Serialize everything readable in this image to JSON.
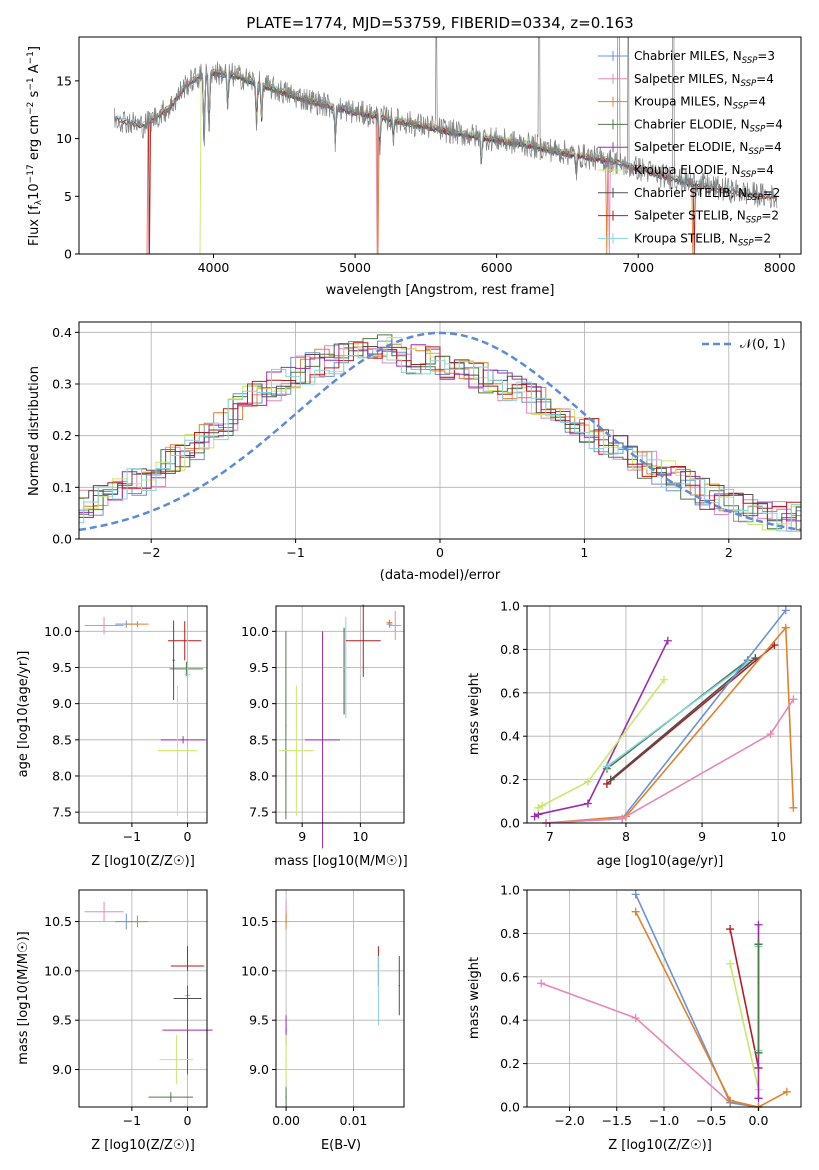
{
  "colors": {
    "Chabrier MILES": "#6a93d8",
    "Salpeter MILES": "#e888b8",
    "Kroupa MILES": "#e0822c",
    "Chabrier ELODIE": "#4e7a48",
    "Salpeter ELODIE": "#9a2cb0",
    "Kroupa ELODIE": "#c8e86a",
    "Chabrier STELIB": "#505050",
    "Salpeter STELIB": "#b21f1f",
    "Kroupa STELIB": "#86d4dc",
    "normal": "#5b8bd9",
    "grid": "#b0b0b0",
    "spectrum": "#808080"
  },
  "chart_data": [
    {
      "id": "spectrum",
      "type": "line",
      "title": "PLATE=1774, MJD=53759, FIBERID=0334, z=0.163",
      "xlabel": "wavelength [Angstrom, rest frame]",
      "ylabel_parts": [
        "Flux [f",
        "λ",
        "10",
        "−17",
        " erg cm",
        "−2",
        " s",
        "−1",
        " A",
        "−1",
        "]"
      ],
      "xlim": [
        3050,
        8150
      ],
      "ylim": [
        0,
        18.8
      ],
      "xticks": [
        "4000",
        "5000",
        "6000",
        "7000",
        "8000"
      ],
      "yticks": [
        "0",
        "5",
        "10",
        "15"
      ],
      "grid": false,
      "legend_position": "top-right",
      "legend": [
        {
          "name": "Chabrier MILES",
          "nssp": "3"
        },
        {
          "name": "Salpeter MILES",
          "nssp": "4"
        },
        {
          "name": "Kroupa MILES",
          "nssp": "4"
        },
        {
          "name": "Chabrier ELODIE",
          "nssp": "4"
        },
        {
          "name": "Salpeter ELODIE",
          "nssp": "4"
        },
        {
          "name": "Kroupa ELODIE",
          "nssp": "4"
        },
        {
          "name": "Chabrier STELIB",
          "nssp": "2"
        },
        {
          "name": "Salpeter STELIB",
          "nssp": "2"
        },
        {
          "name": "Kroupa STELIB",
          "nssp": "2"
        }
      ],
      "continuum": {
        "x": [
          3300,
          3500,
          3700,
          3800,
          3900,
          4000,
          4100,
          4200,
          4400,
          4600,
          4800,
          5000,
          5200,
          5400,
          5600,
          5800,
          6000,
          6200,
          6400,
          6600,
          6800,
          7000,
          7200,
          7400,
          7600,
          7800,
          7980
        ],
        "y": [
          11.8,
          11.1,
          12.8,
          14.6,
          15.4,
          15.7,
          15.6,
          15.3,
          14.4,
          13.6,
          12.9,
          12.3,
          11.8,
          11.3,
          10.8,
          10.3,
          9.9,
          9.5,
          9.0,
          8.5,
          8.1,
          7.4,
          6.7,
          6.1,
          5.6,
          5.2,
          4.9
        ]
      }
    },
    {
      "id": "residuals",
      "type": "step",
      "xlabel": "(data-model)/error",
      "ylabel": "Normed distribution",
      "xlim": [
        -2.5,
        2.5
      ],
      "ylim": [
        0,
        0.42
      ],
      "xticks": [
        "−2",
        "−1",
        "0",
        "1",
        "2"
      ],
      "yticks": [
        "0.0",
        "0.1",
        "0.2",
        "0.3",
        "0.4"
      ],
      "grid": true,
      "legend_position": "top-right",
      "normal_label": "𝒩(0, 1)",
      "envelope_x": [
        -2.5,
        -2.2,
        -2.0,
        -1.8,
        -1.6,
        -1.4,
        -1.2,
        -1.0,
        -0.8,
        -0.6,
        -0.4,
        -0.2,
        0.0,
        0.2,
        0.4,
        0.6,
        0.8,
        1.0,
        1.2,
        1.4,
        1.6,
        1.8,
        2.0,
        2.2,
        2.5
      ],
      "envelope_y": [
        0.06,
        0.1,
        0.12,
        0.16,
        0.2,
        0.25,
        0.29,
        0.32,
        0.34,
        0.36,
        0.37,
        0.35,
        0.34,
        0.32,
        0.3,
        0.28,
        0.25,
        0.22,
        0.18,
        0.15,
        0.12,
        0.09,
        0.07,
        0.05,
        0.04
      ]
    },
    {
      "id": "age-vs-Z",
      "type": "errorbar",
      "xlabel": "Z [log10(Z/Z☉)]",
      "ylabel": "age  [log10(age/yr)]",
      "xlim": [
        -1.95,
        0.35
      ],
      "ylim": [
        7.35,
        10.35
      ],
      "xticks": [
        -1,
        0
      ],
      "yticks": [
        7.5,
        8.0,
        8.5,
        9.0,
        9.5,
        10.0
      ],
      "grid": true,
      "points": [
        {
          "s": "Salpeter MILES",
          "x": -1.5,
          "y": 10.08,
          "xerr": 0.35,
          "yerr": 0.12
        },
        {
          "s": "Chabrier MILES",
          "x": -1.1,
          "y": 10.1,
          "xerr": 0.2,
          "yerr": 0.05
        },
        {
          "s": "Kroupa MILES",
          "x": -0.9,
          "y": 10.1,
          "xerr": 0.2,
          "yerr": 0.04
        },
        {
          "s": "Chabrier STELIB",
          "x": -0.25,
          "y": 9.6,
          "xerr": 0.02,
          "yerr": 0.55
        },
        {
          "s": "Salpeter STELIB",
          "x": -0.05,
          "y": 9.87,
          "xerr": 0.3,
          "yerr": 0.27
        },
        {
          "s": "Chabrier ELODIE",
          "x": -0.02,
          "y": 9.48,
          "xerr": 0.3,
          "yerr": 0.1
        },
        {
          "s": "Kroupa STELIB",
          "x": 0.0,
          "y": 9.4,
          "xerr": 0.05,
          "yerr": 0.75
        },
        {
          "s": "Salpeter ELODIE",
          "x": -0.08,
          "y": 8.5,
          "xerr": 0.4,
          "yerr": 0.05
        },
        {
          "s": "Kroupa ELODIE",
          "x": -0.18,
          "y": 8.35,
          "xerr": 0.35,
          "yerr": 0.9
        }
      ]
    },
    {
      "id": "age-vs-mass",
      "type": "errorbar",
      "xlabel": "mass [log10(M/M☉)]",
      "xlim": [
        8.55,
        10.75
      ],
      "ylim": [
        7.35,
        10.35
      ],
      "xticks": [
        9,
        10
      ],
      "yticks": [
        7.5,
        8.0,
        8.5,
        9.0,
        9.5,
        10.0
      ],
      "grid": true,
      "points": [
        {
          "s": "Chabrier ELODIE",
          "x": 8.72,
          "y": 8.7,
          "xerr": 0.01,
          "yerr": 1.3
        },
        {
          "s": "Kroupa ELODIE",
          "x": 8.9,
          "y": 8.35,
          "xerr": 0.3,
          "yerr": 0.9
        },
        {
          "s": "Salpeter ELODIE",
          "x": 9.35,
          "y": 8.5,
          "xerr": 0.3,
          "yerr": 1.5
        },
        {
          "s": "Chabrier STELIB",
          "x": 9.72,
          "y": 9.45,
          "xerr": 0.01,
          "yerr": 0.6
        },
        {
          "s": "Kroupa STELIB",
          "x": 9.75,
          "y": 9.5,
          "xerr": 0.3,
          "yerr": 0.7
        },
        {
          "s": "Salpeter STELIB",
          "x": 10.05,
          "y": 9.87,
          "xerr": 0.3,
          "yerr": 0.5
        },
        {
          "s": "Kroupa MILES",
          "x": 10.5,
          "y": 10.12,
          "xerr": 0.05,
          "yerr": 0.04
        },
        {
          "s": "Salpeter MILES",
          "x": 10.6,
          "y": 10.08,
          "xerr": 0.1,
          "yerr": 0.2
        },
        {
          "s": "Chabrier MILES",
          "x": 10.5,
          "y": 10.1,
          "xerr": 0.05,
          "yerr": 0.05
        }
      ]
    },
    {
      "id": "mass-weight-vs-age",
      "type": "line",
      "xlabel": "age  [log10(age/yr)]",
      "ylabel": "mass weight",
      "xlim": [
        6.7,
        10.3
      ],
      "ylim": [
        0,
        1
      ],
      "xticks": [
        7,
        8,
        9,
        10
      ],
      "yticks": [
        "0.0",
        "0.2",
        "0.4",
        "0.6",
        "0.8",
        "1.0"
      ],
      "grid": true,
      "series": [
        {
          "s": "Salpeter ELODIE",
          "x": [
            6.8,
            6.85,
            7.5,
            8.55
          ],
          "y": [
            0.03,
            0.04,
            0.09,
            0.84
          ]
        },
        {
          "s": "Kroupa ELODIE",
          "x": [
            6.85,
            6.9,
            7.5,
            8.5
          ],
          "y": [
            0.07,
            0.08,
            0.19,
            0.66
          ]
        },
        {
          "s": "Chabrier ELODIE",
          "x": [
            7.75,
            9.6
          ],
          "y": [
            0.25,
            0.75
          ]
        },
        {
          "s": "Kroupa STELIB",
          "x": [
            7.75,
            9.6
          ],
          "y": [
            0.26,
            0.74
          ]
        },
        {
          "s": "Salpeter STELIB",
          "x": [
            7.75,
            9.95
          ],
          "y": [
            0.18,
            0.82
          ]
        },
        {
          "s": "Chabrier STELIB",
          "x": [
            7.8,
            9.7
          ],
          "y": [
            0.2,
            0.76
          ]
        },
        {
          "s": "Chabrier MILES",
          "x": [
            6.95,
            7.95,
            10.1
          ],
          "y": [
            0.0,
            0.02,
            0.98
          ]
        },
        {
          "s": "Kroupa MILES",
          "x": [
            6.95,
            8.0,
            10.1,
            10.2
          ],
          "y": [
            0.0,
            0.03,
            0.9,
            0.07
          ]
        },
        {
          "s": "Salpeter MILES",
          "x": [
            6.95,
            7.95,
            9.9,
            10.2
          ],
          "y": [
            0.0,
            0.02,
            0.41,
            0.57
          ]
        }
      ]
    },
    {
      "id": "mass-vs-Z",
      "type": "errorbar",
      "xlabel": "Z [log10(Z/Z☉)]",
      "ylabel": "mass [log10(M/M☉)]",
      "xlim": [
        -1.95,
        0.35
      ],
      "ylim": [
        8.62,
        10.82
      ],
      "xticks": [
        -1,
        0
      ],
      "yticks": [
        9.0,
        9.5,
        10.0,
        10.5
      ],
      "grid": true,
      "points": [
        {
          "s": "Salpeter MILES",
          "x": -1.5,
          "y": 10.6,
          "xerr": 0.35,
          "yerr": 0.1
        },
        {
          "s": "Chabrier MILES",
          "x": -1.1,
          "y": 10.5,
          "xerr": 0.2,
          "yerr": 0.08
        },
        {
          "s": "Kroupa MILES",
          "x": -0.9,
          "y": 10.5,
          "xerr": 0.2,
          "yerr": 0.06
        },
        {
          "s": "Salpeter STELIB",
          "x": 0.0,
          "y": 10.05,
          "xerr": 0.3,
          "yerr": 0.2
        },
        {
          "s": "Kroupa STELIB",
          "x": 0.0,
          "y": 9.75,
          "xerr": 0.05,
          "yerr": 0.25
        },
        {
          "s": "Chabrier STELIB",
          "x": 0.0,
          "y": 9.72,
          "xerr": 0.25,
          "yerr": 0.05
        },
        {
          "s": "Salpeter ELODIE",
          "x": 0.0,
          "y": 9.4,
          "xerr": 0.45,
          "yerr": 0.45
        },
        {
          "s": "Kroupa ELODIE",
          "x": -0.2,
          "y": 9.1,
          "xerr": 0.3,
          "yerr": 0.25
        },
        {
          "s": "Chabrier ELODIE",
          "x": -0.3,
          "y": 8.72,
          "xerr": 0.4,
          "yerr": 0.05
        }
      ]
    },
    {
      "id": "mass-vs-EBV",
      "type": "errorbar",
      "xlabel": "E(B-V)",
      "xlim": [
        -0.0015,
        0.0175
      ],
      "ylim": [
        8.62,
        10.82
      ],
      "xticks": [
        "0.00",
        "0.01"
      ],
      "yticks": [
        9.0,
        9.5,
        10.0,
        10.5
      ],
      "grid": true,
      "points": [
        {
          "s": "Salpeter MILES",
          "x": 0.0,
          "y": 10.6,
          "xerr": 0.0001,
          "yerr": 0.12
        },
        {
          "s": "Kroupa MILES",
          "x": 0.0,
          "y": 10.5,
          "xerr": 0.0001,
          "yerr": 0.08
        },
        {
          "s": "Salpeter ELODIE",
          "x": 0.0,
          "y": 9.4,
          "xerr": 0.0001,
          "yerr": 0.15
        },
        {
          "s": "Kroupa ELODIE",
          "x": 0.0,
          "y": 9.1,
          "xerr": 0.0001,
          "yerr": 0.25
        },
        {
          "s": "Chabrier ELODIE",
          "x": 0.0,
          "y": 8.72,
          "xerr": 0.0001,
          "yerr": 0.1
        },
        {
          "s": "Salpeter STELIB",
          "x": 0.0137,
          "y": 10.05,
          "xerr": 0.0001,
          "yerr": 0.2
        },
        {
          "s": "Kroupa STELIB",
          "x": 0.0137,
          "y": 9.8,
          "xerr": 0.0001,
          "yerr": 0.35
        },
        {
          "s": "Chabrier STELIB",
          "x": 0.0168,
          "y": 9.85,
          "xerr": 0.0001,
          "yerr": 0.3
        }
      ]
    },
    {
      "id": "mass-weight-vs-Z",
      "type": "line",
      "xlabel": "Z [log10(Z/Z☉)]",
      "ylabel": "mass weight",
      "xlim": [
        -2.45,
        0.45
      ],
      "ylim": [
        0,
        1
      ],
      "xticks": [
        "−2.0",
        "−1.5",
        "−1.0",
        "−0.5",
        "0.0"
      ],
      "xtick_vals": [
        -2.0,
        -1.5,
        -1.0,
        -0.5,
        0.0
      ],
      "yticks": [
        "0.0",
        "0.2",
        "0.4",
        "0.6",
        "0.8",
        "1.0"
      ],
      "grid": true,
      "series": [
        {
          "s": "Salpeter MILES",
          "x": [
            -2.3,
            -1.3,
            -0.3,
            0.0
          ],
          "y": [
            0.57,
            0.41,
            0.02,
            0.0
          ]
        },
        {
          "s": "Chabrier MILES",
          "x": [
            -1.3,
            -0.3,
            0.0
          ],
          "y": [
            0.98,
            0.02,
            0.0
          ]
        },
        {
          "s": "Kroupa MILES",
          "x": [
            -1.3,
            -0.3,
            0.0,
            0.3
          ],
          "y": [
            0.9,
            0.03,
            0.0,
            0.07
          ]
        },
        {
          "s": "Salpeter STELIB",
          "x": [
            -0.3,
            0.0
          ],
          "y": [
            0.82,
            0.18
          ]
        },
        {
          "s": "Kroupa ELODIE",
          "x": [
            -0.3,
            0.0
          ],
          "y": [
            0.66,
            0.08
          ]
        },
        {
          "s": "Salpeter ELODIE",
          "x": [
            0.0,
            0.0
          ],
          "y": [
            0.84,
            0.04
          ]
        },
        {
          "s": "Chabrier STELIB",
          "x": [
            0.0,
            0.0
          ],
          "y": [
            0.75,
            0.25
          ]
        },
        {
          "s": "Kroupa STELIB",
          "x": [
            0.0,
            0.0
          ],
          "y": [
            0.74,
            0.26
          ]
        },
        {
          "s": "Chabrier ELODIE",
          "x": [
            0.0,
            0.0
          ],
          "y": [
            0.75,
            0.25
          ]
        }
      ]
    }
  ]
}
